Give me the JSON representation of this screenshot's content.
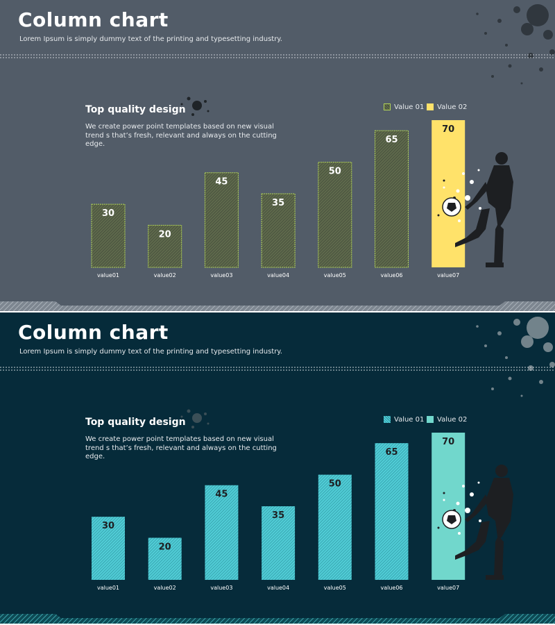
{
  "colors": {
    "slide1_bg": "#525c68",
    "slide2_bg": "#062b3a",
    "slide1_value01": "#b5d657",
    "slide1_value02": "#ffe26a",
    "slide2_value01": "#51cdd6",
    "slide2_value02": "#71d7cc"
  },
  "slides": [
    {
      "title": "Column chart",
      "subtitle": "Lorem Ipsum is simply dummy text of the printing and typesetting industry.",
      "heading": "Top quality design",
      "description": "We create power point templates based on new visual trend s that’s fresh, relevant and always on the cutting edge.",
      "legend": [
        "Value 01",
        "Value 02"
      ]
    },
    {
      "title": "Column chart",
      "subtitle": "Lorem Ipsum is simply dummy text of the printing and typesetting industry.",
      "heading": "Top quality design",
      "description": "We create power point templates based on new visual trend s that’s fresh, relevant and always on the cutting edge.",
      "legend": [
        "Value 01",
        "Value 02"
      ]
    }
  ],
  "chart_data": [
    {
      "type": "bar",
      "categories": [
        "value01",
        "value02",
        "value03",
        "value04",
        "value05",
        "value06",
        "value07"
      ],
      "values": [
        30,
        20,
        45,
        35,
        50,
        65,
        70
      ],
      "series_of_bar": [
        "Value 01",
        "Value 01",
        "Value 01",
        "Value 01",
        "Value 01",
        "Value 01",
        "Value 02"
      ],
      "ylim": [
        0,
        70
      ],
      "grid": false,
      "legend_placement": "top-right",
      "data_labels": true
    },
    {
      "type": "bar",
      "categories": [
        "value01",
        "value02",
        "value03",
        "value04",
        "value05",
        "value06",
        "value07"
      ],
      "values": [
        30,
        20,
        45,
        35,
        50,
        65,
        70
      ],
      "series_of_bar": [
        "Value 01",
        "Value 01",
        "Value 01",
        "Value 01",
        "Value 01",
        "Value 01",
        "Value 02"
      ],
      "ylim": [
        0,
        70
      ],
      "grid": false,
      "legend_placement": "top-right",
      "data_labels": true
    }
  ]
}
